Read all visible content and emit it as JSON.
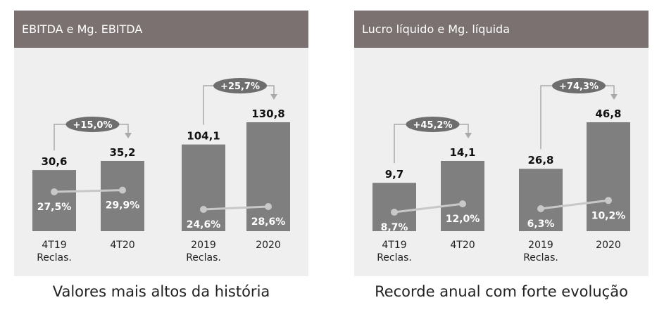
{
  "colors": {
    "bar": "#7f7f7f",
    "header_bg": "#7a7170",
    "panel_bg": "#efefef",
    "line": "#c8c8c8",
    "badge": "#6e6e6e"
  },
  "chart_data": [
    {
      "type": "bar",
      "title": "EBITDA e Mg. EBITDA",
      "caption": "Valores mais altos da história",
      "groups": [
        {
          "categories": [
            "4T19\nReclas.",
            "4T20"
          ],
          "values": [
            30.6,
            35.2
          ],
          "value_labels": [
            "30,6",
            "35,2"
          ],
          "margins": [
            27.5,
            29.9
          ],
          "margin_labels": [
            "27,5%",
            "29,9%"
          ],
          "growth_label": "+15,0%"
        },
        {
          "categories": [
            "2019\nReclas.",
            "2020"
          ],
          "values": [
            104.1,
            130.8
          ],
          "value_labels": [
            "104,1",
            "130,8"
          ],
          "margins": [
            24.6,
            28.6
          ],
          "margin_labels": [
            "24,6%",
            "28,6%"
          ],
          "growth_label": "+25,7%"
        }
      ]
    },
    {
      "type": "bar",
      "title": "Lucro líquido e Mg. líquida",
      "caption": "Recorde anual com forte evolução",
      "groups": [
        {
          "categories": [
            "4T19\nReclas.",
            "4T20"
          ],
          "values": [
            9.7,
            14.1
          ],
          "value_labels": [
            "9,7",
            "14,1"
          ],
          "margins": [
            8.7,
            12.0
          ],
          "margin_labels": [
            "8,7%",
            "12,0%"
          ],
          "growth_label": "+45,2%"
        },
        {
          "categories": [
            "2019\nReclas.",
            "2020"
          ],
          "values": [
            26.8,
            46.8
          ],
          "value_labels": [
            "26,8",
            "46,8"
          ],
          "margins": [
            6.3,
            10.2
          ],
          "margin_labels": [
            "6,3%",
            "10,2%"
          ],
          "growth_label": "+74,3%"
        }
      ]
    }
  ]
}
